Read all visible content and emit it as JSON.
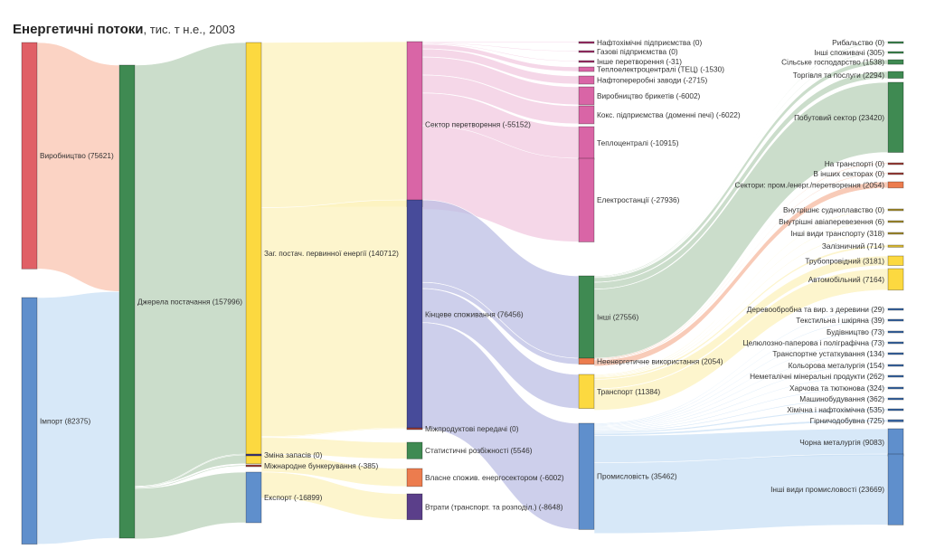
{
  "title": {
    "main": "Енергетичні потоки",
    "sub": ", тис. т н.е., 2003"
  },
  "chart_data": {
    "type": "sankey",
    "title": "Енергетичні потоки, тис. т н.е., 2003",
    "unit": "тис. т н.е.",
    "year": 2003,
    "nodes": [
      {
        "id": "prod",
        "label": "Виробництво (75621)",
        "value": 75621,
        "column": 0,
        "color": "#e06066"
      },
      {
        "id": "import",
        "label": "Імпорт (82375)",
        "value": 82375,
        "column": 0,
        "color": "#5f8fcc"
      },
      {
        "id": "sources",
        "label": "Джерела постачання (157996)",
        "value": 157996,
        "column": 1,
        "color": "#3f8a52"
      },
      {
        "id": "tpes",
        "label": "Заг. постач. первинної енергії (140712)",
        "value": 140712,
        "column": 2,
        "color": "#fcd940"
      },
      {
        "id": "stock",
        "label": "Зміна запасів (0)",
        "value": 0,
        "column": 2,
        "color": "#3e3a7a"
      },
      {
        "id": "bunker",
        "label": "Міжнародне бункерування (-385)",
        "value": -385,
        "column": 2,
        "color": "#a0403a"
      },
      {
        "id": "export",
        "label": "Експорт (-16899)",
        "value": -16899,
        "column": 2,
        "color": "#5f8fcc"
      },
      {
        "id": "transform",
        "label": "Сектор перетворення (-55152)",
        "value": -55152,
        "column": 3,
        "color": "#d965a6"
      },
      {
        "id": "final",
        "label": "Кінцеве споживання (76456)",
        "value": 76456,
        "column": 3,
        "color": "#474b9a"
      },
      {
        "id": "interprod",
        "label": "Міжпродуктові передачі (0)",
        "value": 0,
        "column": 3,
        "color": "#a0403a"
      },
      {
        "id": "statdiff",
        "label": "Статистичні розбіжності (5546)",
        "value": 5546,
        "column": 3,
        "color": "#3f8a52"
      },
      {
        "id": "ownuse",
        "label": "Власне спожив. енергосектором (-6002)",
        "value": -6002,
        "column": 3,
        "color": "#ec7c4e"
      },
      {
        "id": "losses",
        "label": "Втрати (транспорт. та розподіл.) (-8648)",
        "value": -8648,
        "column": 3,
        "color": "#5b3f8a"
      },
      {
        "id": "petrochem",
        "label": "Нафтохімічні підприємства (0)",
        "value": 0,
        "column": 4,
        "color": "#a0306a"
      },
      {
        "id": "gasworks",
        "label": "Газові підприємства (0)",
        "value": 0,
        "column": 4,
        "color": "#a0306a"
      },
      {
        "id": "othtrans",
        "label": "Інше перетворення (-31)",
        "value": -31,
        "column": 4,
        "color": "#a0306a"
      },
      {
        "id": "chp",
        "label": "Теплоелектроцентралі (ТЕЦ) (-1530)",
        "value": -1530,
        "column": 4,
        "color": "#d965a6"
      },
      {
        "id": "refin",
        "label": "Нафтопереробні заводи (-2715)",
        "value": -2715,
        "column": 4,
        "color": "#d965a6"
      },
      {
        "id": "brik",
        "label": "Виробництво брикетів (-6002)",
        "value": -6002,
        "column": 4,
        "color": "#d965a6"
      },
      {
        "id": "coke",
        "label": "Кокс. підприємства (доменні печі) (-6022)",
        "value": -6022,
        "column": 4,
        "color": "#d965a6"
      },
      {
        "id": "heat",
        "label": "Теплоцентралі (-10915)",
        "value": -10915,
        "column": 4,
        "color": "#d965a6"
      },
      {
        "id": "power",
        "label": "Електростанції (-27936)",
        "value": -27936,
        "column": 4,
        "color": "#d965a6"
      },
      {
        "id": "other",
        "label": "Інші (27556)",
        "value": 27556,
        "column": 4,
        "color": "#3f8a52"
      },
      {
        "id": "nonen",
        "label": "Неенергетичне використання (2054)",
        "value": 2054,
        "column": 4,
        "color": "#ec7c4e"
      },
      {
        "id": "transport",
        "label": "Транспорт (11384)",
        "value": 11384,
        "column": 4,
        "color": "#fcd940"
      },
      {
        "id": "industry",
        "label": "Промисловість (35462)",
        "value": 35462,
        "column": 4,
        "color": "#5f8fcc"
      },
      {
        "id": "fish",
        "label": "Рибальство (0)",
        "value": 0,
        "column": 5,
        "color": "#3f8a52"
      },
      {
        "id": "othcons",
        "label": "Інші споживачі (305)",
        "value": 305,
        "column": 5,
        "color": "#3f8a52"
      },
      {
        "id": "agri",
        "label": "Сільське господарство (1538)",
        "value": 1538,
        "column": 5,
        "color": "#3f8a52"
      },
      {
        "id": "trade",
        "label": "Торгівля та послуги (2294)",
        "value": 2294,
        "column": 5,
        "color": "#3f8a52"
      },
      {
        "id": "resid",
        "label": "Побутовий сектор (23420)",
        "value": 23420,
        "column": 5,
        "color": "#3f8a52"
      },
      {
        "id": "ne_trans",
        "label": "На транспорті (0)",
        "value": 0,
        "column": 5,
        "color": "#a0403a"
      },
      {
        "id": "ne_oth",
        "label": "В інших секторах (0)",
        "value": 0,
        "column": 5,
        "color": "#a0403a"
      },
      {
        "id": "ne_ind",
        "label": "Сектори: пром./енерг./перетворення (2054)",
        "value": 2054,
        "column": 5,
        "color": "#ec7c4e"
      },
      {
        "id": "navig",
        "label": "Внутрішнє судноплавство (0)",
        "value": 0,
        "column": 5,
        "color": "#a89030"
      },
      {
        "id": "aviat",
        "label": "Внутрішні авіаперевезення (6)",
        "value": 6,
        "column": 5,
        "color": "#a89030"
      },
      {
        "id": "othtr",
        "label": "Інші види транспорту (318)",
        "value": 318,
        "column": 5,
        "color": "#a89030"
      },
      {
        "id": "rail",
        "label": "Залізничний (714)",
        "value": 714,
        "column": 5,
        "color": "#d8b830"
      },
      {
        "id": "pipe",
        "label": "Трубопровідний (3181)",
        "value": 3181,
        "column": 5,
        "color": "#fcd940"
      },
      {
        "id": "road",
        "label": "Автомобільний (7164)",
        "value": 7164,
        "column": 5,
        "color": "#fcd940"
      },
      {
        "id": "wood",
        "label": "Деревообробна та вир. з деревини (29)",
        "value": 29,
        "column": 5,
        "color": "#3a68a8"
      },
      {
        "id": "textile",
        "label": "Текстильна і шкіряна (39)",
        "value": 39,
        "column": 5,
        "color": "#3a68a8"
      },
      {
        "id": "constr",
        "label": "Будівництво (73)",
        "value": 73,
        "column": 5,
        "color": "#3a68a8"
      },
      {
        "id": "paper",
        "label": "Целюлозно-паперова і поліграфічна (73)",
        "value": 73,
        "column": 5,
        "color": "#3a68a8"
      },
      {
        "id": "transeq",
        "label": "Транспортне устаткування (134)",
        "value": 134,
        "column": 5,
        "color": "#3a68a8"
      },
      {
        "id": "nonferr",
        "label": "Кольорова металургія (154)",
        "value": 154,
        "column": 5,
        "color": "#3a68a8"
      },
      {
        "id": "nonmet",
        "label": "Неметалічні мінеральні продукти (262)",
        "value": 262,
        "column": 5,
        "color": "#3a68a8"
      },
      {
        "id": "food",
        "label": "Харчова та тютюнова (324)",
        "value": 324,
        "column": 5,
        "color": "#3a68a8"
      },
      {
        "id": "mach",
        "label": "Машинобудування (362)",
        "value": 362,
        "column": 5,
        "color": "#3a68a8"
      },
      {
        "id": "chem",
        "label": "Хімічна і нафтохімічна (535)",
        "value": 535,
        "column": 5,
        "color": "#3a68a8"
      },
      {
        "id": "mining",
        "label": "Гірничодобувна (725)",
        "value": 725,
        "column": 5,
        "color": "#3a68a8"
      },
      {
        "id": "steel",
        "label": "Чорна металургія (9083)",
        "value": 9083,
        "column": 5,
        "color": "#5f8fcc"
      },
      {
        "id": "othind",
        "label": "Інші види промисловості (23669)",
        "value": 23669,
        "column": 5,
        "color": "#5f8fcc"
      }
    ],
    "links": [
      {
        "source": "prod",
        "target": "sources",
        "value": 75621,
        "color": "#f9c4b0"
      },
      {
        "source": "import",
        "target": "sources",
        "value": 82375,
        "color": "#c9e0f6"
      },
      {
        "source": "sources",
        "target": "tpes",
        "value": 140712,
        "color": "#b9d1b9"
      },
      {
        "source": "sources",
        "target": "stock",
        "value": 0,
        "color": "#b9d1b9"
      },
      {
        "source": "sources",
        "target": "bunker",
        "value": 385,
        "color": "#b9d1b9"
      },
      {
        "source": "sources",
        "target": "export",
        "value": 16899,
        "color": "#b9d1b9"
      },
      {
        "source": "tpes",
        "target": "transform",
        "value": 55152,
        "color": "#fcf1bc"
      },
      {
        "source": "tpes",
        "target": "final",
        "value": 76456,
        "color": "#fcf1bc"
      },
      {
        "source": "tpes",
        "target": "interprod",
        "value": 0,
        "color": "#fcf1bc"
      },
      {
        "source": "tpes",
        "target": "statdiff",
        "value": 5546,
        "color": "#fcf1bc"
      },
      {
        "source": "tpes",
        "target": "ownuse",
        "value": 6002,
        "color": "#fcf1bc"
      },
      {
        "source": "tpes",
        "target": "losses",
        "value": 8648,
        "color": "#fcf1bc"
      },
      {
        "source": "transform",
        "target": "petrochem",
        "value": 0,
        "color": "#f1cae0"
      },
      {
        "source": "transform",
        "target": "gasworks",
        "value": 0,
        "color": "#f1cae0"
      },
      {
        "source": "transform",
        "target": "othtrans",
        "value": 31,
        "color": "#f1cae0"
      },
      {
        "source": "transform",
        "target": "chp",
        "value": 1530,
        "color": "#f1cae0"
      },
      {
        "source": "transform",
        "target": "refin",
        "value": 2715,
        "color": "#f1cae0"
      },
      {
        "source": "transform",
        "target": "brik",
        "value": 6002,
        "color": "#f1cae0"
      },
      {
        "source": "transform",
        "target": "coke",
        "value": 6022,
        "color": "#f1cae0"
      },
      {
        "source": "transform",
        "target": "heat",
        "value": 10915,
        "color": "#f1cae0"
      },
      {
        "source": "transform",
        "target": "power",
        "value": 27936,
        "color": "#f1cae0"
      },
      {
        "source": "final",
        "target": "other",
        "value": 27556,
        "color": "#bcbfe4"
      },
      {
        "source": "final",
        "target": "nonen",
        "value": 2054,
        "color": "#bcbfe4"
      },
      {
        "source": "final",
        "target": "transport",
        "value": 11384,
        "color": "#bcbfe4"
      },
      {
        "source": "final",
        "target": "industry",
        "value": 35462,
        "color": "#bcbfe4"
      },
      {
        "source": "other",
        "target": "fish",
        "value": 0,
        "color": "#b9d1b9"
      },
      {
        "source": "other",
        "target": "othcons",
        "value": 305,
        "color": "#b9d1b9"
      },
      {
        "source": "other",
        "target": "agri",
        "value": 1538,
        "color": "#b9d1b9"
      },
      {
        "source": "other",
        "target": "trade",
        "value": 2294,
        "color": "#b9d1b9"
      },
      {
        "source": "other",
        "target": "resid",
        "value": 23420,
        "color": "#b9d1b9"
      },
      {
        "source": "nonen",
        "target": "ne_trans",
        "value": 0,
        "color": "#f5b9a0"
      },
      {
        "source": "nonen",
        "target": "ne_oth",
        "value": 0,
        "color": "#f5b9a0"
      },
      {
        "source": "nonen",
        "target": "ne_ind",
        "value": 2054,
        "color": "#f5b9a0"
      },
      {
        "source": "transport",
        "target": "navig",
        "value": 0,
        "color": "#fcf1bc"
      },
      {
        "source": "transport",
        "target": "aviat",
        "value": 6,
        "color": "#fcf1bc"
      },
      {
        "source": "transport",
        "target": "othtr",
        "value": 318,
        "color": "#fcf1bc"
      },
      {
        "source": "transport",
        "target": "rail",
        "value": 714,
        "color": "#fcf1bc"
      },
      {
        "source": "transport",
        "target": "pipe",
        "value": 3181,
        "color": "#fcf1bc"
      },
      {
        "source": "transport",
        "target": "road",
        "value": 7164,
        "color": "#fcf1bc"
      },
      {
        "source": "industry",
        "target": "wood",
        "value": 29,
        "color": "#c9e0f6"
      },
      {
        "source": "industry",
        "target": "textile",
        "value": 39,
        "color": "#c9e0f6"
      },
      {
        "source": "industry",
        "target": "constr",
        "value": 73,
        "color": "#c9e0f6"
      },
      {
        "source": "industry",
        "target": "paper",
        "value": 73,
        "color": "#c9e0f6"
      },
      {
        "source": "industry",
        "target": "transeq",
        "value": 134,
        "color": "#c9e0f6"
      },
      {
        "source": "industry",
        "target": "nonferr",
        "value": 154,
        "color": "#c9e0f6"
      },
      {
        "source": "industry",
        "target": "nonmet",
        "value": 262,
        "color": "#c9e0f6"
      },
      {
        "source": "industry",
        "target": "food",
        "value": 324,
        "color": "#c9e0f6"
      },
      {
        "source": "industry",
        "target": "mach",
        "value": 362,
        "color": "#c9e0f6"
      },
      {
        "source": "industry",
        "target": "chem",
        "value": 535,
        "color": "#c9e0f6"
      },
      {
        "source": "industry",
        "target": "mining",
        "value": 725,
        "color": "#c9e0f6"
      },
      {
        "source": "industry",
        "target": "steel",
        "value": 9083,
        "color": "#c9e0f6"
      },
      {
        "source": "industry",
        "target": "othind",
        "value": 23669,
        "color": "#c9e0f6"
      }
    ]
  }
}
